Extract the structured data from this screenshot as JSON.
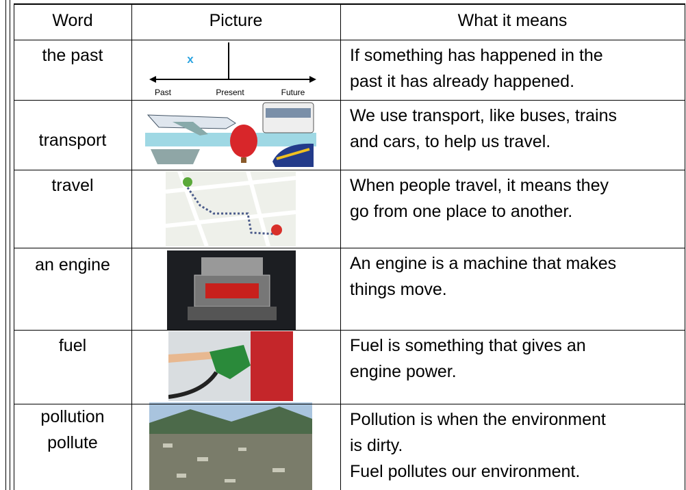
{
  "table": {
    "header": [
      "Word",
      "Picture",
      "What it means"
    ],
    "rows": [
      {
        "word": [
          "the past"
        ],
        "meaning": [
          "If something has happened in the",
          "past it has already happened."
        ]
      },
      {
        "word": [
          "transport"
        ],
        "meaning": [
          "We use transport, like buses, trains",
          "and cars, to help us travel."
        ]
      },
      {
        "word": [
          "travel"
        ],
        "meaning": [
          "When people travel, it means they",
          "go from one place to another."
        ]
      },
      {
        "word": [
          "an engine"
        ],
        "meaning": [
          "An engine is a machine that makes",
          "things move."
        ]
      },
      {
        "word": [
          "fuel"
        ],
        "meaning": [
          "Fuel is something that gives an",
          "engine power."
        ]
      },
      {
        "word": [
          "pollution",
          "pollute"
        ],
        "meaning": [
          "Pollution is when the environment",
          "is dirty.",
          "Fuel pollutes our environment."
        ]
      }
    ]
  },
  "timeline": {
    "mark": "x",
    "labels": [
      "Past",
      "Present",
      "Future"
    ]
  }
}
